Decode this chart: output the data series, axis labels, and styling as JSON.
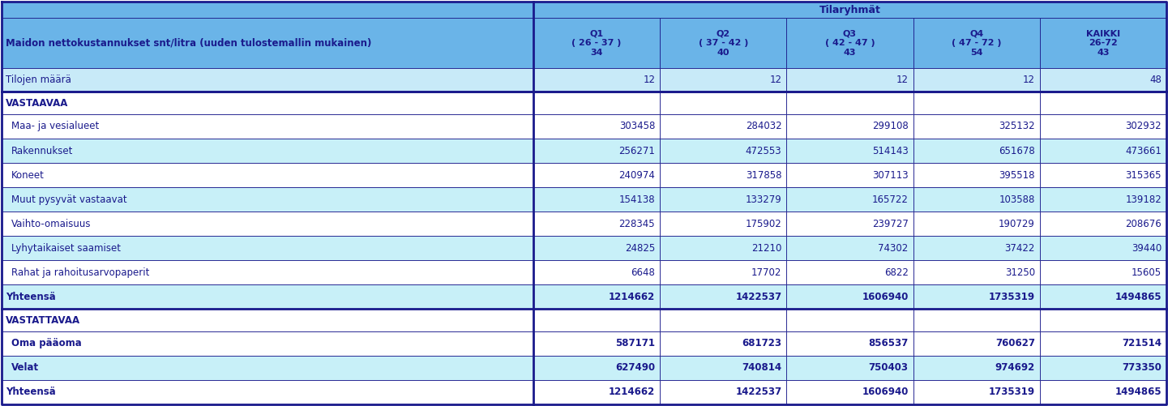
{
  "title_header": "Tilaryhmät",
  "col_headers": [
    "Q1\n( 26 - 37 )\n34",
    "Q2\n( 37 - 42 )\n40",
    "Q3\n( 42 - 47 )\n43",
    "Q4\n( 47 - 72 )\n54",
    "KAIKKI\n26-72\n43"
  ],
  "main_label": "Maidon nettokustannukset snt/litra (uuden tulostemallin mukainen)",
  "tilojen_maara_label": "Tilojen määrä",
  "tilojen_maara_values": [
    "12",
    "12",
    "12",
    "12",
    "48"
  ],
  "sections": [
    {
      "header": "VASTAAVAA",
      "rows": [
        {
          "label": "  Maa- ja vesialueet",
          "values": [
            "303458",
            "284032",
            "299108",
            "325132",
            "302932"
          ],
          "shaded": false,
          "bold": false
        },
        {
          "label": "  Rakennukset",
          "values": [
            "256271",
            "472553",
            "514143",
            "651678",
            "473661"
          ],
          "shaded": true,
          "bold": false
        },
        {
          "label": "  Koneet",
          "values": [
            "240974",
            "317858",
            "307113",
            "395518",
            "315365"
          ],
          "shaded": false,
          "bold": false
        },
        {
          "label": "  Muut pysyvät vastaavat",
          "values": [
            "154138",
            "133279",
            "165722",
            "103588",
            "139182"
          ],
          "shaded": true,
          "bold": false
        },
        {
          "label": "  Vaihto-omaisuus",
          "values": [
            "228345",
            "175902",
            "239727",
            "190729",
            "208676"
          ],
          "shaded": false,
          "bold": false
        },
        {
          "label": "  Lyhytaikaiset saamiset",
          "values": [
            "24825",
            "21210",
            "74302",
            "37422",
            "39440"
          ],
          "shaded": true,
          "bold": false
        },
        {
          "label": "  Rahat ja rahoitusarvopaperit",
          "values": [
            "6648",
            "17702",
            "6822",
            "31250",
            "15605"
          ],
          "shaded": false,
          "bold": false
        }
      ],
      "total_shaded": true,
      "total_label": "Yhteensä",
      "total_values": [
        "1214662",
        "1422537",
        "1606940",
        "1735319",
        "1494865"
      ]
    },
    {
      "header": "VASTATTAVAA",
      "rows": [
        {
          "label": "  Oma pääoma",
          "values": [
            "587171",
            "681723",
            "856537",
            "760627",
            "721514"
          ],
          "shaded": false,
          "bold": true
        },
        {
          "label": "  Velat",
          "values": [
            "627490",
            "740814",
            "750403",
            "974692",
            "773350"
          ],
          "shaded": true,
          "bold": true
        }
      ],
      "total_shaded": false,
      "total_label": "Yhteensä",
      "total_values": [
        "1214662",
        "1422537",
        "1606940",
        "1735319",
        "1494865"
      ]
    }
  ],
  "color_header_bg": "#6ab4e8",
  "color_col_header_bg": "#6ab4e8",
  "color_main_label_bg": "#6ab4e8",
  "color_tilojen_bg": "#c8eaf8",
  "color_shaded_row": "#c8f0f8",
  "color_white_row": "#ffffff",
  "color_border": "#1a1a8c",
  "color_text_blue": "#1a1a8c",
  "color_header_text": "#1a1a8c"
}
